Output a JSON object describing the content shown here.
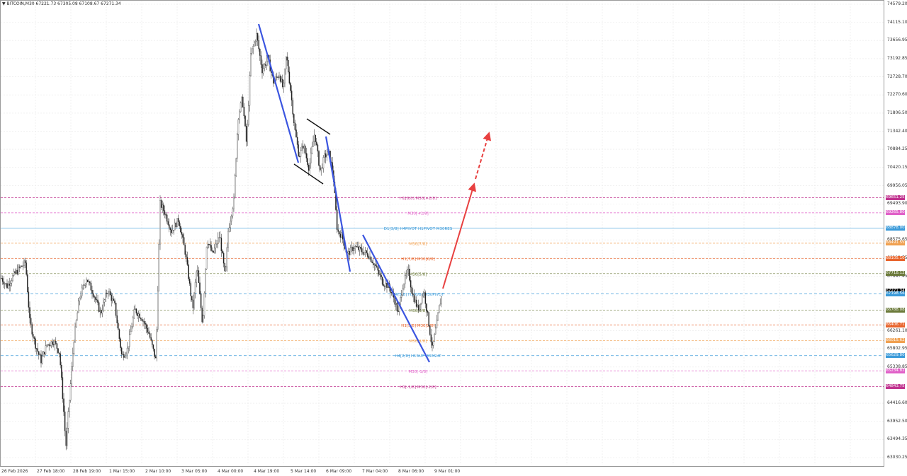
{
  "header": {
    "symbol_text": "▼ BITCOIN,M30  67221.73 67305.08 67108.67 67271.34"
  },
  "price_axis": {
    "ticks": [
      {
        "label": "74579.20",
        "price": 74579.2
      },
      {
        "label": "74115.10",
        "price": 74115.1
      },
      {
        "label": "73656.95",
        "price": 73656.95
      },
      {
        "label": "73192.85",
        "price": 73192.85
      },
      {
        "label": "72728.70",
        "price": 72728.7
      },
      {
        "label": "72270.60",
        "price": 72270.6
      },
      {
        "label": "71806.50",
        "price": 71806.5
      },
      {
        "label": "71342.40",
        "price": 71342.4
      },
      {
        "label": "70884.25",
        "price": 70884.25
      },
      {
        "label": "70420.15",
        "price": 70420.15
      },
      {
        "label": "69956.05",
        "price": 69956.05
      },
      {
        "label": "69493.90",
        "price": 69493.9
      },
      {
        "label": "68575.65",
        "price": 68575.65
      },
      {
        "label": "68111.55",
        "price": 68111.55
      },
      {
        "label": "67647.45",
        "price": 67647.45
      },
      {
        "label": "66261.10",
        "price": 66261.1
      },
      {
        "label": "65802.95",
        "price": 65802.95
      },
      {
        "label": "65338.85",
        "price": 65338.85
      },
      {
        "label": "64416.60",
        "price": 64416.6
      },
      {
        "label": "63952.50",
        "price": 63952.5
      },
      {
        "label": "63494.35",
        "price": 63494.35
      },
      {
        "label": "63030.25",
        "price": 63030.25
      }
    ],
    "tags": [
      {
        "label": "69651.25",
        "price": 69651.25,
        "color": "#c0338f"
      },
      {
        "label": "69265.80",
        "price": 69265.8,
        "color": "#e060c8"
      },
      {
        "label": "68878.00",
        "price": 68878.0,
        "color": "#3a9ad9"
      },
      {
        "label": "68491.55",
        "price": 68491.55,
        "color": "#f0a050"
      },
      {
        "label": "68105.10",
        "price": 68105.1,
        "color": "#e8642c"
      },
      {
        "label": "67718.12",
        "price": 67718.12,
        "color": "#6b7a3a"
      },
      {
        "label": "67271.34",
        "price": 67271.34,
        "color": "#000000"
      },
      {
        "label": "67198.56",
        "price": 67198.56,
        "color": "#3a9ad9"
      },
      {
        "label": "66788.08",
        "price": 66788.08,
        "color": "#6b7a3a"
      },
      {
        "label": "66406.71",
        "price": 66406.71,
        "color": "#e8642c"
      },
      {
        "label": "66015.62",
        "price": 66015.62,
        "color": "#f0a050"
      },
      {
        "label": "65629.80",
        "price": 65629.8,
        "color": "#3a9ad9"
      },
      {
        "label": "65234.82",
        "price": 65234.82,
        "color": "#e060c8"
      },
      {
        "label": "64843.75",
        "price": 64843.75,
        "color": "#c0338f"
      }
    ]
  },
  "time_axis": {
    "labels": [
      "26 Feb 2026",
      "27 Feb 18:00",
      "28 Feb 19:00",
      "1 Mar 15:00",
      "2 Mar 10:00",
      "3 Mar 05:00",
      "4 Mar 00:00",
      "4 Mar 19:00",
      "5 Mar 14:00",
      "6 Mar 09:00",
      "7 Mar 04:00",
      "8 Mar 06:00",
      "9 Mar 01:00"
    ]
  },
  "levels": [
    {
      "text": "H1[8/8] M30[+2/8]",
      "price": 69651.25,
      "color": "#c0338f",
      "dash": "3,2"
    },
    {
      "text": "M30[+1/8]",
      "price": 69265.8,
      "color": "#e060c8",
      "dash": "3,2"
    },
    {
      "text": "D1[3/8] H4PIVOT H1PIVOT M30RES",
      "price": 68878.0,
      "color": "#3a9ad9",
      "dash": ""
    },
    {
      "text": "M30[7/8]",
      "price": 68491.55,
      "color": "#f0a050",
      "dash": "3,2"
    },
    {
      "text": "H1[7/8] M30[6/8]",
      "price": 68105.1,
      "color": "#e8642c",
      "dash": "3,2"
    },
    {
      "text": "M30[5/8]",
      "price": 67718.12,
      "color": "#6b7a3a",
      "dash": "3,2"
    },
    {
      "text": "H4[3/8] H1[6/8] M30PIVOT",
      "price": 67198.56,
      "color": "#3a9ad9",
      "dash": "4,3"
    },
    {
      "text": "M30[3/8]",
      "price": 66788.08,
      "color": "#6b7a3a",
      "dash": "3,2"
    },
    {
      "text": "H1[5/8] M30[2/8]",
      "price": 66406.71,
      "color": "#e8642c",
      "dash": "3,2"
    },
    {
      "text": "M30[1/8]",
      "price": 66015.62,
      "color": "#f0a050",
      "dash": "3,2"
    },
    {
      "text": "H4[2/8] H1SUP M30SUP",
      "price": 65629.8,
      "color": "#3a9ad9",
      "dash": "4,3"
    },
    {
      "text": "M30[-1/8]",
      "price": 65234.82,
      "color": "#e060c8",
      "dash": "3,2"
    },
    {
      "text": "H1[-1/8] M30[-2/8]",
      "price": 64843.75,
      "color": "#c0338f",
      "dash": "3,2"
    }
  ],
  "colors": {
    "grid": "#e8e8e8",
    "candle": "#222222",
    "trend": "#3b55e0",
    "channel": "#111111",
    "forecast": "#e84040"
  }
}
